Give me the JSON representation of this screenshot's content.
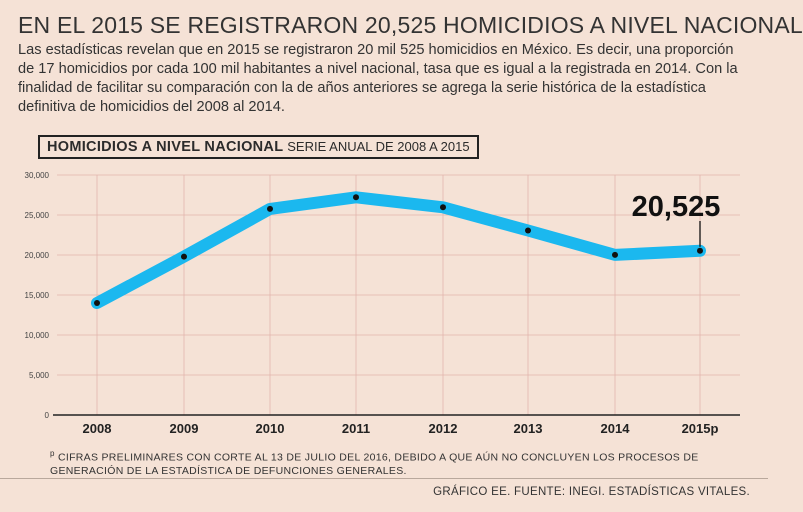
{
  "title": "EN EL 2015 SE REGISTRARON 20,525 HOMICIDIOS A NIVEL NACIONAL",
  "description": "Las estadísticas revelan que en 2015 se registraron 20 mil 525 homicidios en México. Es decir, una proporción de 17 homicidios por cada 100 mil habitantes a nivel nacional, tasa que es igual a la registrada en 2014. Con la finalidad de facilitar su comparación con la de años anteriores se agrega la serie histórica de la estadística definitiva de homicidios del 2008 al 2014.",
  "chart_data": {
    "type": "line",
    "title": "HOMICIDIOS A NIVEL NACIONAL",
    "subtitle": "SERIE ANUAL DE 2008 A 2015",
    "categories": [
      "2008",
      "2009",
      "2010",
      "2011",
      "2012",
      "2013",
      "2014",
      "2015p"
    ],
    "values": [
      14006,
      19803,
      25757,
      27213,
      25967,
      23063,
      20010,
      20525
    ],
    "ylim": [
      0,
      30000
    ],
    "yticks": [
      0,
      5000,
      10000,
      15000,
      20000,
      25000,
      30000
    ],
    "ytick_labels": [
      "0",
      "5,000",
      "10,000",
      "15,000",
      "20,000",
      "25,000",
      "30,000"
    ],
    "highlight_label": "20,525",
    "line_color": "#1bb8ef",
    "grid": true
  },
  "footnote": {
    "marker": "p",
    "text": "CIFRAS PRELIMINARES CON CORTE AL 13 DE JULIO DEL 2016, DEBIDO A QUE AÚN NO CONCLUYEN LOS PROCESOS DE GENERACIÓN DE LA ESTADÍSTICA DE DEFUNCIONES GENERALES."
  },
  "source": "GRÁFICO EE. FUENTE: INEGI. ESTADÍSTICAS VITALES."
}
